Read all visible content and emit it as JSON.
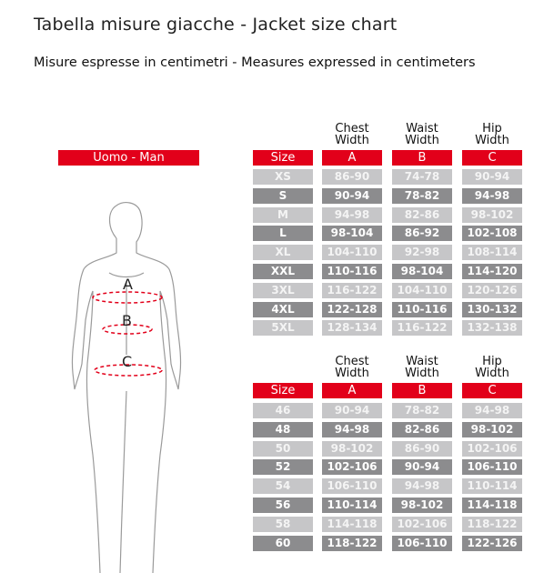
{
  "title": "Tabella misure giacche - Jacket size chart",
  "subtitle": "Misure espresse in centimetri  - Measures expressed in centimeters",
  "gender_label": "Uomo - Man",
  "figure_labels": [
    "A",
    "B",
    "C"
  ],
  "colors": {
    "accent": "#e2001a",
    "row_light": "#c6c6c8",
    "row_dark": "#8c8c8e"
  },
  "tables": [
    {
      "column_titles": [
        "Chest\nWidth",
        "Waist\nWidth",
        "Hip\nWidth"
      ],
      "headers": [
        "Size",
        "A",
        "B",
        "C"
      ],
      "rows": [
        [
          "XS",
          "86-90",
          "74-78",
          "90-94"
        ],
        [
          "S",
          "90-94",
          "78-82",
          "94-98"
        ],
        [
          "M",
          "94-98",
          "82-86",
          "98-102"
        ],
        [
          "L",
          "98-104",
          "86-92",
          "102-108"
        ],
        [
          "XL",
          "104-110",
          "92-98",
          "108-114"
        ],
        [
          "XXL",
          "110-116",
          "98-104",
          "114-120"
        ],
        [
          "3XL",
          "116-122",
          "104-110",
          "120-126"
        ],
        [
          "4XL",
          "122-128",
          "110-116",
          "130-132"
        ],
        [
          "5XL",
          "128-134",
          "116-122",
          "132-138"
        ]
      ]
    },
    {
      "column_titles": [
        "Chest\nWidth",
        "Waist\nWidth",
        "Hip\nWidth"
      ],
      "headers": [
        "Size",
        "A",
        "B",
        "C"
      ],
      "rows": [
        [
          "46",
          "90-94",
          "78-82",
          "94-98"
        ],
        [
          "48",
          "94-98",
          "82-86",
          "98-102"
        ],
        [
          "50",
          "98-102",
          "86-90",
          "102-106"
        ],
        [
          "52",
          "102-106",
          "90-94",
          "106-110"
        ],
        [
          "54",
          "106-110",
          "94-98",
          "110-114"
        ],
        [
          "56",
          "110-114",
          "98-102",
          "114-118"
        ],
        [
          "58",
          "114-118",
          "102-106",
          "118-122"
        ],
        [
          "60",
          "118-122",
          "106-110",
          "122-126"
        ]
      ]
    }
  ]
}
